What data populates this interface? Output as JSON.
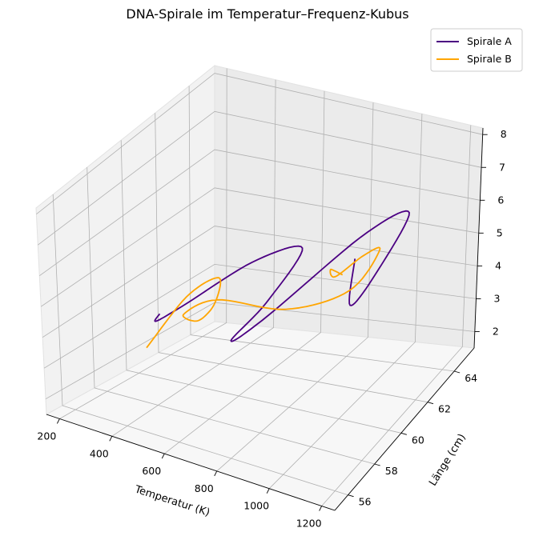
{
  "chart_data": {
    "type": "line",
    "projection": "3d",
    "title": "DNA-Spirale im Temperatur–Frequenz-Kubus",
    "xlabel": "Temperatur (K)",
    "ylabel": "Länge (cm)",
    "zlabel": "",
    "xlim": [
      150,
      1250
    ],
    "ylim": [
      55,
      65.5
    ],
    "zlim": [
      1.5,
      8.2
    ],
    "xticks": [
      "200",
      "400",
      "600",
      "800",
      "1000",
      "1200"
    ],
    "yticks": [
      "56",
      "58",
      "60",
      "62",
      "64"
    ],
    "zticks": [
      "2",
      "3",
      "4",
      "5",
      "6",
      "7",
      "8"
    ],
    "grid": true,
    "legend_position": "top-right",
    "series": [
      {
        "name": "Spirale A",
        "color": "#4b0082",
        "x": [
          320,
          380,
          450,
          520,
          600,
          680,
          760,
          840,
          920,
          1000,
          1080,
          1160,
          1220
        ],
        "y": [
          59.5,
          58.3,
          58.8,
          62.2,
          64.2,
          60.5,
          56.8,
          57.5,
          62.8,
          64.8,
          61.0,
          57.8,
          57.0
        ],
        "z": [
          3.6,
          3.9,
          4.3,
          4.5,
          4.3,
          4.2,
          4.7,
          5.2,
          5.6,
          5.6,
          5.5,
          6.2,
          8.1
        ]
      },
      {
        "name": "Spirale B",
        "color": "#ffa500",
        "x": [
          200,
          280,
          360,
          430,
          500,
          580,
          660,
          740,
          820,
          900,
          980,
          1060,
          1140,
          1200
        ],
        "y": [
          60.5,
          61.8,
          62.6,
          61.2,
          59.0,
          56.8,
          57.6,
          60.8,
          63.8,
          64.5,
          62.0,
          58.6,
          56.8,
          56.5
        ],
        "z": [
          2.1,
          3.3,
          3.7,
          3.5,
          3.9,
          5.1,
          5.4,
          4.0,
          3.5,
          4.5,
          5.5,
          6.5,
          7.7,
          7.8
        ]
      }
    ]
  }
}
